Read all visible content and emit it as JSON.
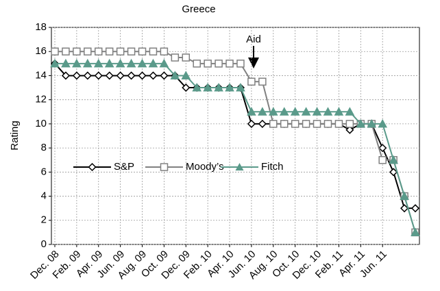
{
  "chart_data": {
    "type": "line",
    "title": "Greece",
    "y_label": "Rating",
    "annotation": "Aid",
    "categories": [
      "Dec. 08",
      null,
      "Feb. 09",
      null,
      "Apr. 09",
      null,
      "Jun. 09",
      null,
      "Aug. 09",
      null,
      "Oct. 09",
      null,
      "Dec. 09",
      null,
      "Feb. 10",
      null,
      "Apr. 10",
      null,
      "Jun. 10",
      null,
      "Aug. 10",
      null,
      "Oct. 10",
      null,
      "Dec. 10",
      null,
      "Feb. 11",
      null,
      "Apr. 11",
      null,
      "Jun. 11",
      null,
      null,
      null
    ],
    "series": [
      {
        "name": "S&P",
        "color": "#000000",
        "marker": "diamond",
        "values": [
          15,
          14,
          14,
          14,
          14,
          14,
          14,
          14,
          14,
          14,
          14,
          14,
          13,
          13,
          13,
          13,
          13,
          13,
          10,
          10,
          10,
          10,
          10,
          10,
          10,
          10,
          10,
          9.5,
          10,
          10,
          8,
          6,
          3,
          3
        ]
      },
      {
        "name": "Moody’s",
        "color": "#808080",
        "marker": "square",
        "values": [
          16,
          16,
          16,
          16,
          16,
          16,
          16,
          16,
          16,
          16,
          16,
          15.5,
          15.5,
          15,
          15,
          15,
          15,
          15,
          13.5,
          13.5,
          10,
          10,
          10,
          10,
          10,
          10,
          10,
          10,
          10,
          10,
          7,
          7,
          4,
          1
        ]
      },
      {
        "name": "Fitch",
        "color": "#5a9a8a",
        "marker": "triangle",
        "values": [
          15,
          15,
          15,
          15,
          15,
          15,
          15,
          15,
          15,
          15,
          15,
          14,
          14,
          13,
          13,
          13,
          13,
          13,
          11,
          11,
          11,
          11,
          11,
          11,
          11,
          11,
          11,
          11,
          10,
          10,
          10,
          7,
          4,
          1
        ]
      }
    ],
    "ylim": [
      0,
      18
    ],
    "yticks": [
      0,
      2,
      4,
      6,
      8,
      10,
      12,
      14,
      16,
      18
    ],
    "grid": true
  }
}
